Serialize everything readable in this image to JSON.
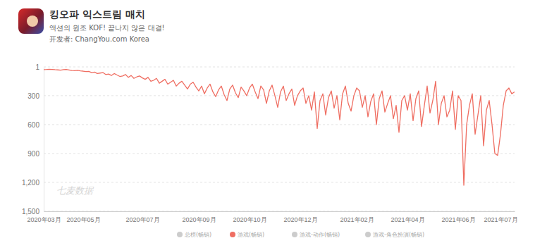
{
  "chart_data": {
    "type": "line",
    "title": "킹오파 익스트림 매치",
    "subtitle": "액션의 원조 KOF! 끝나지 않은 대결!",
    "developer": "开发者: ChangYou.com Korea",
    "watermark": "七麦数据",
    "legend_items": [
      "总榜(畅销)",
      "游戏-动作(畅销)",
      "游戏-角色扮演(畅销)"
    ],
    "categories": [
      "2020年03月",
      null,
      null,
      null,
      null,
      null,
      null,
      null,
      null,
      null,
      null,
      null,
      null,
      null,
      "2020年05月",
      null,
      null,
      null,
      null,
      null,
      null,
      null,
      null,
      null,
      null,
      null,
      null,
      null,
      null,
      null,
      null,
      null,
      null,
      null,
      null,
      "2020年07月",
      null,
      null,
      null,
      null,
      null,
      null,
      null,
      null,
      null,
      null,
      null,
      null,
      null,
      null,
      null,
      null,
      null,
      null,
      null,
      "2020年09月",
      null,
      null,
      null,
      null,
      null,
      null,
      null,
      null,
      null,
      null,
      null,
      null,
      null,
      null,
      null,
      null,
      null,
      "2020年10月",
      null,
      null,
      null,
      null,
      null,
      null,
      null,
      null,
      null,
      null,
      null,
      null,
      null,
      null,
      null,
      null,
      null,
      "2020年12月",
      null,
      null,
      null,
      null,
      null,
      null,
      null,
      null,
      null,
      null,
      null,
      null,
      null,
      null,
      null,
      null,
      null,
      null,
      null,
      "2021年02月",
      null,
      null,
      null,
      null,
      null,
      null,
      null,
      null,
      null,
      null,
      null,
      null,
      null,
      null,
      null,
      null,
      null,
      "2021年04月",
      null,
      null,
      null,
      null,
      null,
      null,
      null,
      null,
      null,
      null,
      null,
      null,
      null,
      null,
      null,
      null,
      null,
      "2021年06月",
      null,
      null,
      null,
      null,
      null,
      null,
      null,
      null,
      null,
      null,
      null,
      null,
      null,
      null,
      "2021年07月",
      null,
      null,
      null,
      null,
      null
    ],
    "series": [
      {
        "name": "游戏(畅销)",
        "color": "#ef6e62",
        "values": [
          30,
          28,
          25,
          27,
          30,
          32,
          35,
          30,
          28,
          33,
          38,
          40,
          36,
          42,
          45,
          50,
          48,
          60,
          55,
          70,
          65,
          60,
          80,
          75,
          90,
          70,
          85,
          100,
          95,
          80,
          110,
          90,
          120,
          105,
          95,
          115,
          130,
          110,
          150,
          140,
          120,
          170,
          150,
          130,
          180,
          160,
          140,
          200,
          170,
          150,
          190,
          230,
          180,
          160,
          210,
          250,
          200,
          280,
          220,
          180,
          260,
          310,
          240,
          200,
          290,
          350,
          230,
          190,
          270,
          320,
          210,
          250,
          300,
          220,
          180,
          260,
          330,
          200,
          240,
          380,
          250,
          190,
          300,
          420,
          260,
          200,
          350,
          280,
          230,
          400,
          300,
          250,
          220,
          380,
          300,
          450,
          260,
          640,
          350,
          280,
          500,
          320,
          250,
          430,
          300,
          550,
          280,
          200,
          380,
          460,
          300,
          220,
          250,
          420,
          300,
          520,
          360,
          280,
          600,
          330,
          250,
          470,
          380,
          300,
          540,
          400,
          680,
          350,
          300,
          450,
          280,
          560,
          330,
          250,
          620,
          400,
          200,
          480,
          350,
          150,
          600,
          380,
          300,
          520,
          450,
          250,
          650,
          300,
          350,
          1230,
          600,
          400,
          280,
          700,
          500,
          300,
          820,
          450,
          350,
          600,
          900,
          920,
          700,
          400,
          250,
          220,
          280,
          260
        ]
      }
    ],
    "ylim": [
      1,
      1500
    ],
    "yticks": [
      1,
      300,
      600,
      900,
      {
        "value": 1200,
        "label": "1,200"
      },
      {
        "value": 1500,
        "label": "1,500"
      }
    ],
    "grid": true,
    "legend": "bottom"
  }
}
